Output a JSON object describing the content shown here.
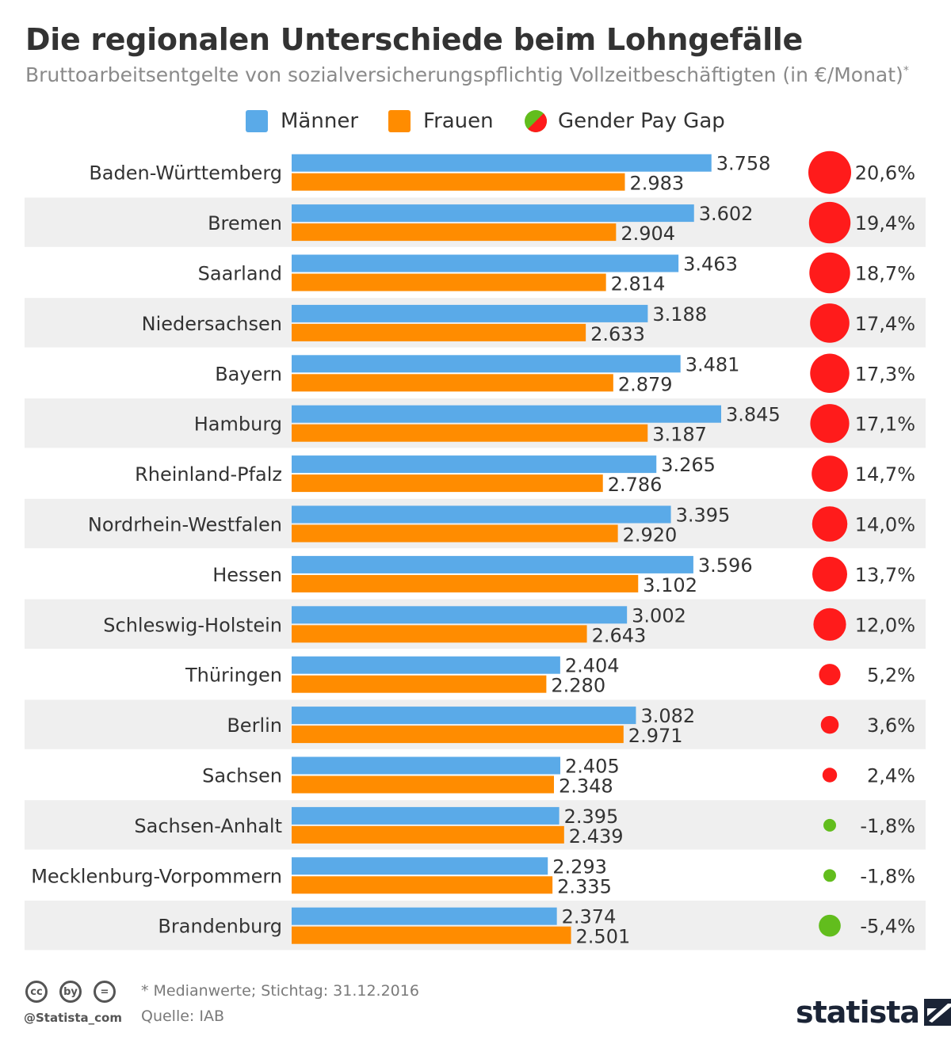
{
  "colors": {
    "men": "#5aaae8",
    "women": "#ff8c00",
    "gap_positive": "#ff1b1b",
    "gap_negative": "#62bd1d",
    "stripe": "#efefef"
  },
  "legend": {
    "men_label": "Männer",
    "women_label": "Frauen",
    "gap_label": "Gender Pay Gap"
  },
  "footer": {
    "note": "* Medianwerte; Stichtag: 31.12.2016",
    "source": "Quelle: IAB",
    "handle": "@Statista_com",
    "brand": "statista",
    "cc_icons": [
      "cc",
      "by",
      "="
    ]
  },
  "chart_data": {
    "type": "bar",
    "orientation": "horizontal",
    "title": "Die regionalen Unterschiede beim Lohngefälle",
    "subtitle": "Bruttoarbeitsentgelte von sozialversicherungspflichtig Vollzeitbeschäftigten (in €/Monat)",
    "subtitle_marker": "*",
    "xlabel": "",
    "ylabel": "",
    "xlim": [
      0,
      3845
    ],
    "grid": false,
    "legend_position": "top",
    "categories": [
      "Baden-Württemberg",
      "Bremen",
      "Saarland",
      "Niedersachsen",
      "Bayern",
      "Hamburg",
      "Rheinland-Pfalz",
      "Nordrhein-Westfalen",
      "Hessen",
      "Schleswig-Holstein",
      "Thüringen",
      "Berlin",
      "Sachsen",
      "Sachsen-Anhalt",
      "Mecklenburg-Vorpommern",
      "Brandenburg"
    ],
    "series": [
      {
        "name": "Männer",
        "values": [
          3758,
          3602,
          3463,
          3188,
          3481,
          3845,
          3265,
          3395,
          3596,
          3002,
          2404,
          3082,
          2405,
          2395,
          2293,
          2374
        ],
        "labels": [
          "3.758",
          "3.602",
          "3.463",
          "3.188",
          "3.481",
          "3.845",
          "3.265",
          "3.395",
          "3.596",
          "3.002",
          "2.404",
          "3.082",
          "2.405",
          "2.395",
          "2.293",
          "2.374"
        ]
      },
      {
        "name": "Frauen",
        "values": [
          2983,
          2904,
          2814,
          2633,
          2879,
          3187,
          2786,
          2920,
          3102,
          2643,
          2280,
          2971,
          2348,
          2439,
          2335,
          2501
        ],
        "labels": [
          "2.983",
          "2.904",
          "2.814",
          "2.633",
          "2.879",
          "3.187",
          "2.786",
          "2.920",
          "3.102",
          "2.643",
          "2.280",
          "2.971",
          "2.348",
          "2.439",
          "2.335",
          "2.501"
        ]
      }
    ],
    "gender_pay_gap": {
      "name": "Gender Pay Gap",
      "unit": "%",
      "values": [
        20.6,
        19.4,
        18.7,
        17.4,
        17.3,
        17.1,
        14.7,
        14.0,
        13.7,
        12.0,
        5.2,
        3.6,
        2.4,
        -1.8,
        -1.8,
        -5.4
      ],
      "labels": [
        "20,6%",
        "19,4%",
        "18,7%",
        "17,4%",
        "17,3%",
        "17,1%",
        "14,7%",
        "14,0%",
        "13,7%",
        "12,0%",
        "5,2%",
        "3,6%",
        "2,4%",
        "-1,8%",
        "-1,8%",
        "-5,4%"
      ]
    }
  }
}
